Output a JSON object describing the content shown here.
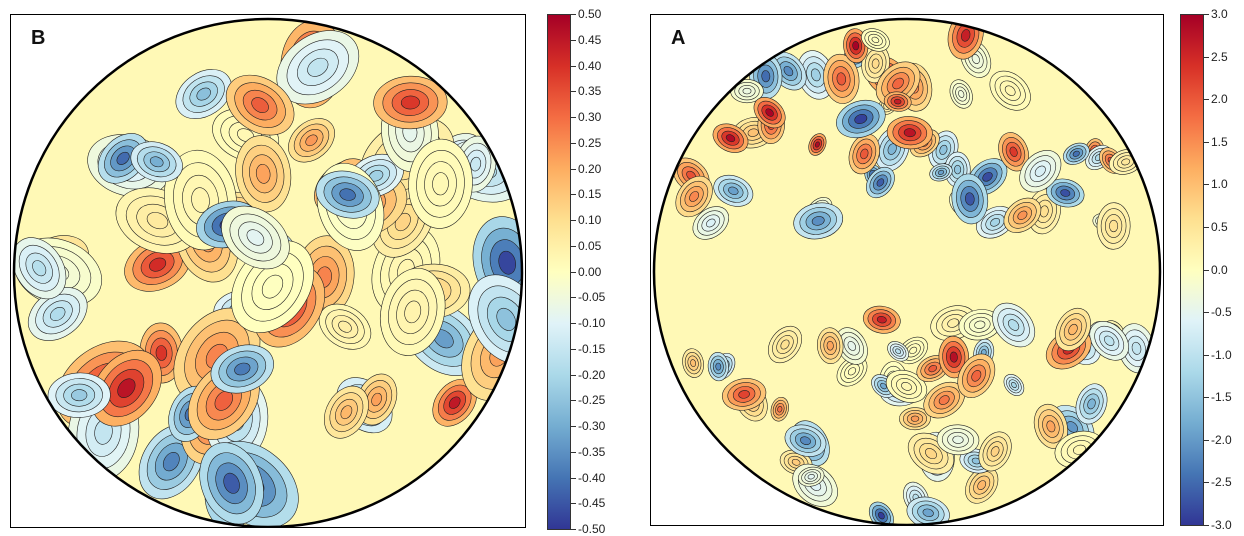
{
  "chart_data": [
    {
      "type": "heatmap",
      "panel_label": "B",
      "projection": "orthographic",
      "colormap": "RdYlBu_r",
      "colorbar": {
        "min": -0.5,
        "max": 0.5,
        "ticks": [
          "0.50",
          "0.45",
          "0.40",
          "0.35",
          "0.30",
          "0.25",
          "0.20",
          "0.15",
          "0.10",
          "0.05",
          "0.00",
          "-0.05",
          "-0.10",
          "-0.15",
          "-0.20",
          "-0.25",
          "-0.30",
          "-0.35",
          "-0.40",
          "-0.45",
          "-0.50"
        ]
      }
    },
    {
      "type": "heatmap",
      "panel_label": "A",
      "projection": "orthographic",
      "colormap": "RdYlBu_r",
      "colorbar": {
        "min": -3.0,
        "max": 3.0,
        "ticks": [
          "3.0",
          "2.5",
          "2.0",
          "1.5",
          "1.0",
          "0.5",
          "0.0",
          "-0.5",
          "-1.0",
          "-1.5",
          "-2.0",
          "-2.5",
          "-3.0"
        ]
      }
    }
  ],
  "colors": {
    "colormap_stops": [
      "#313695",
      "#4575b4",
      "#74add1",
      "#abd9e9",
      "#e0f3f8",
      "#ffffbf",
      "#fee090",
      "#fdae61",
      "#f46d43",
      "#d73027",
      "#a50026"
    ]
  }
}
